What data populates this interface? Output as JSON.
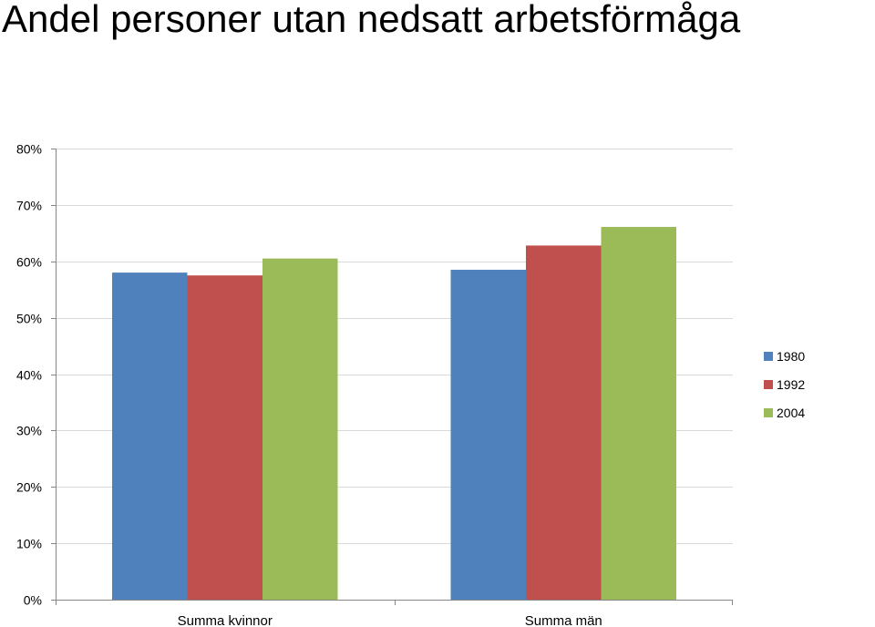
{
  "chart_data": {
    "type": "bar",
    "title": "Andel personer utan nedsatt arbetsförmåga",
    "xlabel": "",
    "ylabel": "",
    "categories": [
      "Summa kvinnor",
      "Summa män"
    ],
    "series": [
      {
        "name": "1980",
        "color": "#4f81bd",
        "values": [
          0.58,
          0.585
        ]
      },
      {
        "name": "1992",
        "color": "#c0504d",
        "values": [
          0.575,
          0.628
        ]
      },
      {
        "name": "2004",
        "color": "#9bbb59",
        "values": [
          0.605,
          0.661
        ]
      }
    ],
    "ylim": [
      0,
      0.8
    ],
    "yticks": [
      0,
      0.1,
      0.2,
      0.3,
      0.4,
      0.5,
      0.6,
      0.7,
      0.8
    ],
    "ytick_labels": [
      "0%",
      "10%",
      "20%",
      "30%",
      "40%",
      "50%",
      "60%",
      "70%",
      "80%"
    ],
    "grid": true,
    "legend_position": "right"
  }
}
